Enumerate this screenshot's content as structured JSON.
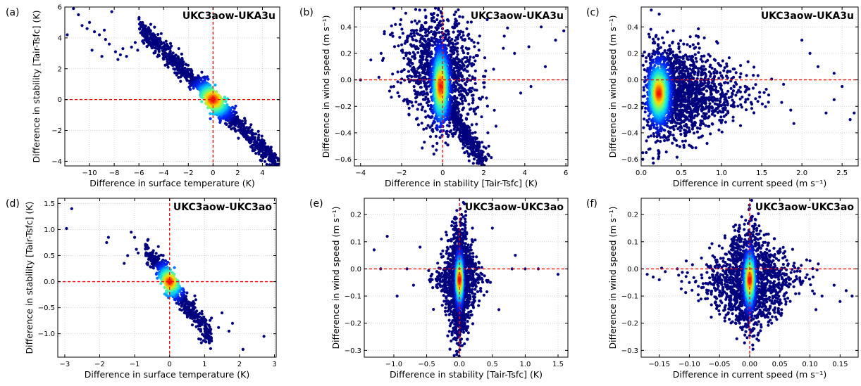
{
  "colors": {
    "background": "#ffffff",
    "grid": "#cccccc",
    "reference_line": "#ff0000",
    "density_low": "#00007f",
    "density_mid": "#00a0ff",
    "density_midhigh": "#40ff80",
    "density_high": "#ffd000",
    "density_peak": "#ff0000"
  },
  "chart_data": [
    {
      "label": "(a)",
      "type": "scatter",
      "title": "UKC3aow-UKA3u",
      "xlabel": "Difference in surface temperature (K)",
      "ylabel": "Difference in stability [Tair-Tsfc] (K)",
      "xlim": [
        -12,
        5.4
      ],
      "ylim": [
        -4.3,
        6
      ],
      "xticks": [
        -10,
        -8,
        -6,
        -4,
        -2,
        0,
        2,
        4
      ],
      "yticks": [
        -4,
        -2,
        0,
        2,
        4,
        6
      ],
      "grid": true,
      "reference_lines": {
        "x": 0,
        "y": 0
      },
      "pattern": "linear",
      "slope": -0.8,
      "intercept": 0,
      "center": [
        0,
        0
      ],
      "core_spread": [
        0.6,
        0.3
      ],
      "extent_x": [
        -6,
        5.3
      ],
      "perp_spread": 0.35,
      "outliers": [
        [
          -11.3,
          5.9
        ],
        [
          -10.9,
          5.5
        ],
        [
          -8.2,
          5.7
        ],
        [
          -10.6,
          4.8
        ],
        [
          -10.2,
          4.6
        ],
        [
          -9.6,
          4.4
        ],
        [
          -9.2,
          4.2
        ],
        [
          -8.7,
          3.9
        ],
        [
          -8.4,
          3.6
        ],
        [
          -7.9,
          3.1
        ],
        [
          -7.5,
          2.9
        ],
        [
          -7.0,
          2.8
        ],
        [
          -6.6,
          3.4
        ],
        [
          -6.3,
          3.7
        ],
        [
          -9.0,
          2.8
        ],
        [
          -9.8,
          3.2
        ],
        [
          -7.3,
          3.3
        ],
        [
          -11.8,
          4.2
        ],
        [
          -6.1,
          3.2
        ],
        [
          -8.8,
          4.5
        ],
        [
          -10.0,
          5.0
        ],
        [
          -7.7,
          2.6
        ]
      ],
      "n_points": 1600
    },
    {
      "label": "(b)",
      "type": "scatter",
      "title": "UKC3aow-UKA3u",
      "xlabel": "Difference in stability [Tair-Tsfc] (K)",
      "ylabel": "Difference in wind speed (m s⁻¹)",
      "xlim": [
        -4.3,
        6.1
      ],
      "ylim": [
        -0.65,
        0.55
      ],
      "xticks": [
        -4,
        -2,
        0,
        2,
        4,
        6
      ],
      "yticks": [
        -0.6,
        -0.4,
        -0.2,
        0.0,
        0.2,
        0.4
      ],
      "grid": true,
      "reference_lines": {
        "x": 0,
        "y": 0
      },
      "pattern": "fan",
      "center": [
        -0.1,
        -0.05
      ],
      "core_spread": [
        0.18,
        0.12
      ],
      "halo_spread": [
        0.9,
        0.22
      ],
      "tail": {
        "from": [
          0.2,
          -0.2
        ],
        "to": [
          2.0,
          -0.62
        ],
        "width": 0.25
      },
      "outliers": [
        [
          4.8,
          0.4
        ],
        [
          5.5,
          0.3
        ],
        [
          5.9,
          0.37
        ],
        [
          4.2,
          0.25
        ],
        [
          3.8,
          -0.1
        ],
        [
          4.3,
          -0.05
        ],
        [
          -3.5,
          0.15
        ],
        [
          -3.0,
          0.2
        ],
        [
          3.0,
          0.33
        ],
        [
          3.5,
          0.2
        ],
        [
          2.6,
          -0.35
        ],
        [
          2.2,
          -0.4
        ],
        [
          -4.0,
          0.0
        ],
        [
          5.0,
          0.1
        ]
      ],
      "n_points": 2400
    },
    {
      "label": "(c)",
      "type": "scatter",
      "title": "UKC3aow-UKA3u",
      "xlabel": "Difference in current speed (m s⁻¹)",
      "ylabel": "Difference in wind speed (m s⁻¹)",
      "xlim": [
        0,
        2.7
      ],
      "ylim": [
        -0.65,
        0.55
      ],
      "xticks": [
        0.0,
        0.5,
        1.0,
        1.5,
        2.0,
        2.5
      ],
      "yticks": [
        -0.6,
        -0.4,
        -0.2,
        0.0,
        0.2,
        0.4
      ],
      "grid": true,
      "reference_lines": {
        "y": 0
      },
      "pattern": "skewed",
      "center": [
        0.22,
        -0.1
      ],
      "core_spread": [
        0.06,
        0.1
      ],
      "halo_spread": [
        0.5,
        0.2
      ],
      "extent_x": [
        0,
        2.0
      ],
      "outliers": [
        [
          2.2,
          0.1
        ],
        [
          2.4,
          -0.15
        ],
        [
          2.6,
          -0.3
        ],
        [
          2.5,
          -0.05
        ],
        [
          2.3,
          -0.25
        ],
        [
          2.1,
          0.2
        ],
        [
          1.9,
          -0.33
        ],
        [
          2.65,
          -0.25
        ],
        [
          2.0,
          0.3
        ],
        [
          0.02,
          -0.6
        ],
        [
          0.02,
          -0.55
        ],
        [
          2.4,
          0.05
        ]
      ],
      "n_points": 2400
    },
    {
      "label": "(d)",
      "type": "scatter",
      "title": "UKC3aow-UKC3ao",
      "xlabel": "Difference in surface temperature (K)",
      "ylabel": "Difference in stability [Tair-Tsfc] (K)",
      "xlim": [
        -3.2,
        3.05
      ],
      "ylim": [
        -1.45,
        1.6
      ],
      "xticks": [
        -3,
        -2,
        -1,
        0,
        1,
        2,
        3
      ],
      "yticks": [
        -1.0,
        -0.5,
        0.0,
        0.5,
        1.0,
        1.5
      ],
      "grid": true,
      "reference_lines": {
        "x": 0,
        "y": 0
      },
      "pattern": "linear",
      "slope": -0.9,
      "intercept": 0,
      "center": [
        0,
        0
      ],
      "core_spread": [
        0.15,
        0.08
      ],
      "extent_x": [
        -0.7,
        1.2
      ],
      "perp_spread": 0.12,
      "outliers": [
        [
          -2.8,
          1.4
        ],
        [
          -2.95,
          1.02
        ],
        [
          -1.75,
          0.85
        ],
        [
          -1.8,
          0.75
        ],
        [
          -1.1,
          0.95
        ],
        [
          -1.0,
          0.85
        ],
        [
          -1.3,
          0.35
        ],
        [
          -0.95,
          0.62
        ],
        [
          2.1,
          -1.3
        ],
        [
          2.7,
          -1.05
        ],
        [
          1.7,
          -0.95
        ],
        [
          1.4,
          -0.88
        ],
        [
          1.8,
          -0.8
        ],
        [
          1.2,
          -0.7
        ],
        [
          1.5,
          -0.6
        ],
        [
          -0.9,
          0.55
        ],
        [
          1.0,
          -0.75
        ],
        [
          -1.2,
          0.5
        ]
      ],
      "n_points": 700
    },
    {
      "label": "(e)",
      "type": "scatter",
      "title": "UKC3aow-UKC3ao",
      "xlabel": "Difference in stability [Tair-Tsfc] (K)",
      "ylabel": "Difference in wind speed (m s⁻¹)",
      "xlim": [
        -1.45,
        1.65
      ],
      "ylim": [
        -0.325,
        0.26
      ],
      "xticks": [
        -1.0,
        -0.5,
        0.0,
        0.5,
        1.0,
        1.5
      ],
      "yticks": [
        -0.3,
        -0.2,
        -0.1,
        0.0,
        0.1,
        0.2
      ],
      "grid": true,
      "reference_lines": {
        "x": 0,
        "y": 0
      },
      "pattern": "vertical",
      "center": [
        0,
        -0.04
      ],
      "core_spread": [
        0.025,
        0.04
      ],
      "halo_spread": [
        0.18,
        0.1
      ],
      "outliers": [
        [
          -1.1,
          0.12
        ],
        [
          -1.2,
          0.0
        ],
        [
          -1.3,
          0.07
        ],
        [
          -0.8,
          0.0
        ],
        [
          -0.7,
          -0.06
        ],
        [
          -0.95,
          -0.1
        ],
        [
          0.8,
          0.0
        ],
        [
          0.85,
          0.05
        ],
        [
          1.5,
          -0.02
        ],
        [
          1.2,
          0.0
        ],
        [
          0.6,
          -0.15
        ],
        [
          -0.6,
          0.08
        ],
        [
          0.5,
          0.15
        ],
        [
          1.0,
          0.0
        ]
      ],
      "n_points": 2200
    },
    {
      "label": "(f)",
      "type": "scatter",
      "title": "UKC3aow-UKC3ao",
      "xlabel": "Difference in current speed (m s⁻¹)",
      "ylabel": "Difference in wind speed (m s⁻¹)",
      "xlim": [
        -0.18,
        0.18
      ],
      "ylim": [
        -0.325,
        0.26
      ],
      "xticks": [
        -0.15,
        -0.1,
        -0.05,
        0.0,
        0.05,
        0.1,
        0.15
      ],
      "yticks": [
        -0.3,
        -0.2,
        -0.1,
        0.0,
        0.1,
        0.2
      ],
      "grid": true,
      "reference_lines": {
        "x": 0,
        "y": 0
      },
      "pattern": "diamond",
      "center": [
        0,
        -0.04
      ],
      "core_spread": [
        0.004,
        0.045
      ],
      "halo_spread": [
        0.045,
        0.09
      ],
      "outliers": [
        [
          -0.17,
          -0.02
        ],
        [
          -0.16,
          -0.03
        ],
        [
          -0.14,
          -0.01
        ],
        [
          -0.12,
          0.0
        ],
        [
          -0.1,
          -0.05
        ],
        [
          0.12,
          -0.1
        ],
        [
          0.14,
          -0.06
        ],
        [
          0.16,
          -0.08
        ],
        [
          0.15,
          -0.12
        ],
        [
          0.17,
          -0.1
        ],
        [
          -0.15,
          -0.04
        ],
        [
          0.1,
          0.03
        ],
        [
          -0.08,
          0.04
        ],
        [
          0.11,
          -0.15
        ]
      ],
      "n_points": 2200
    }
  ]
}
